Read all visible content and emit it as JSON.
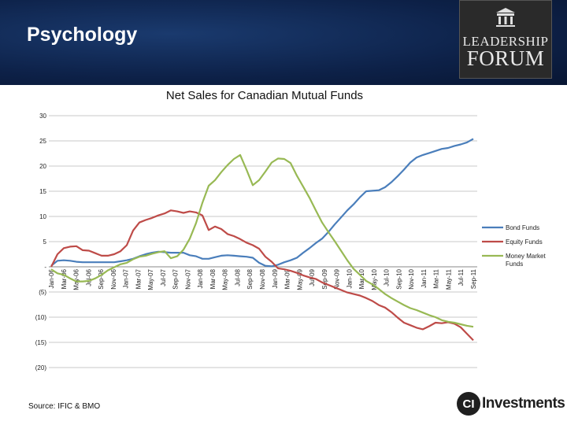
{
  "slide": {
    "title": "Psychology",
    "source": "Source: IFIC & BMO",
    "logo_line1": "LEADERSHIP",
    "logo_line2": "FORUM",
    "ci_logo_mark": "CI",
    "ci_logo_text": "Investments"
  },
  "colors": {
    "header_bg": "#0d2148",
    "bond": "#4a7ebb",
    "equity": "#be4b48",
    "money_market": "#98b954",
    "grid": "#c8c8c8"
  },
  "chart_data": {
    "type": "line",
    "title": "Net Sales for Canadian Mutual Funds",
    "xlabel": "",
    "ylabel": "",
    "ylim": [
      -20,
      30
    ],
    "grid": true,
    "legend_position": "right",
    "y_ticks": [
      {
        "value": 30,
        "label": "30"
      },
      {
        "value": 25,
        "label": "25"
      },
      {
        "value": 20,
        "label": "20"
      },
      {
        "value": 15,
        "label": "15"
      },
      {
        "value": 10,
        "label": "10"
      },
      {
        "value": 5,
        "label": "5"
      },
      {
        "value": 0,
        "label": "-"
      },
      {
        "value": -5,
        "label": "(5)"
      },
      {
        "value": -10,
        "label": "(10)"
      },
      {
        "value": -15,
        "label": "(15)"
      },
      {
        "value": -20,
        "label": "(20)"
      }
    ],
    "x_labels": [
      "Jan-06",
      "Mar-06",
      "May-06",
      "Jul-06",
      "Sep-06",
      "Nov-06",
      "Jan-07",
      "Mar-07",
      "May-07",
      "Jul-07",
      "Sep-07",
      "Nov-07",
      "Jan-08",
      "Mar-08",
      "May-08",
      "Jul-08",
      "Sep-08",
      "Nov-08",
      "Jan-09",
      "Mar-09",
      "May-09",
      "Jul-09",
      "Sep-09",
      "Nov-09",
      "Jan-10",
      "Mar-10",
      "May-10",
      "Jul-10",
      "Sep-10",
      "Nov-10",
      "Jan-11",
      "Mar-11",
      "May-11",
      "Jul-11",
      "Sep-11"
    ],
    "series": [
      {
        "name": "Bond Funds",
        "color": "#4a7ebb",
        "values": [
          0.2,
          1.2,
          1.3,
          1.2,
          1.0,
          0.9,
          0.9,
          0.9,
          0.9,
          0.9,
          0.9,
          1.1,
          1.3,
          1.6,
          2.1,
          2.5,
          2.8,
          3.0,
          2.9,
          2.8,
          2.8,
          2.8,
          2.3,
          2.1,
          1.6,
          1.6,
          1.9,
          2.2,
          2.3,
          2.2,
          2.1,
          2.0,
          1.8,
          0.8,
          0.2,
          0.1,
          0.4,
          0.9,
          1.3,
          1.8,
          2.8,
          3.7,
          4.7,
          5.6,
          6.9,
          8.4,
          9.8,
          11.2,
          12.4,
          13.8,
          15.0,
          15.1,
          15.2,
          15.8,
          16.8,
          18.0,
          19.3,
          20.7,
          21.7,
          22.2,
          22.6,
          23.0,
          23.4,
          23.6,
          24.0,
          24.3,
          24.7,
          25.4
        ]
      },
      {
        "name": "Equity Funds",
        "color": "#be4b48",
        "values": [
          0.0,
          2.5,
          3.7,
          4.0,
          4.1,
          3.3,
          3.2,
          2.7,
          2.2,
          2.2,
          2.5,
          3.1,
          4.3,
          7.2,
          8.8,
          9.3,
          9.7,
          10.2,
          10.6,
          11.2,
          11.0,
          10.7,
          11.0,
          10.8,
          10.2,
          7.3,
          8.0,
          7.5,
          6.5,
          6.1,
          5.5,
          4.8,
          4.3,
          3.6,
          2.0,
          1.0,
          -0.3,
          -0.5,
          -0.8,
          -1.2,
          -1.7,
          -2.1,
          -2.4,
          -3.1,
          -3.6,
          -4.1,
          -4.6,
          -5.1,
          -5.4,
          -5.7,
          -6.2,
          -6.8,
          -7.6,
          -8.1,
          -9.0,
          -10.1,
          -11.1,
          -11.6,
          -12.1,
          -12.4,
          -11.8,
          -11.1,
          -11.2,
          -11.0,
          -11.3,
          -12.0,
          -13.3,
          -14.6
        ]
      },
      {
        "name": "Money Market Funds",
        "color": "#98b954",
        "values": [
          -0.5,
          -1.3,
          -1.6,
          -2.3,
          -2.9,
          -2.9,
          -2.8,
          -2.3,
          -1.6,
          -0.7,
          -0.1,
          0.5,
          0.8,
          1.5,
          2.0,
          2.2,
          2.6,
          2.9,
          3.1,
          1.7,
          2.1,
          3.4,
          5.6,
          8.7,
          12.7,
          16.1,
          17.2,
          18.8,
          20.2,
          21.4,
          22.2,
          19.3,
          16.2,
          17.2,
          18.9,
          20.7,
          21.5,
          21.4,
          20.6,
          18.1,
          15.9,
          13.7,
          11.2,
          8.8,
          6.9,
          5.1,
          3.2,
          1.3,
          -0.4,
          -1.6,
          -2.8,
          -3.5,
          -4.4,
          -5.4,
          -6.2,
          -6.9,
          -7.6,
          -8.2,
          -8.6,
          -9.1,
          -9.6,
          -10.0,
          -10.6,
          -10.9,
          -11.1,
          -11.4,
          -11.7,
          -11.9
        ]
      }
    ]
  }
}
